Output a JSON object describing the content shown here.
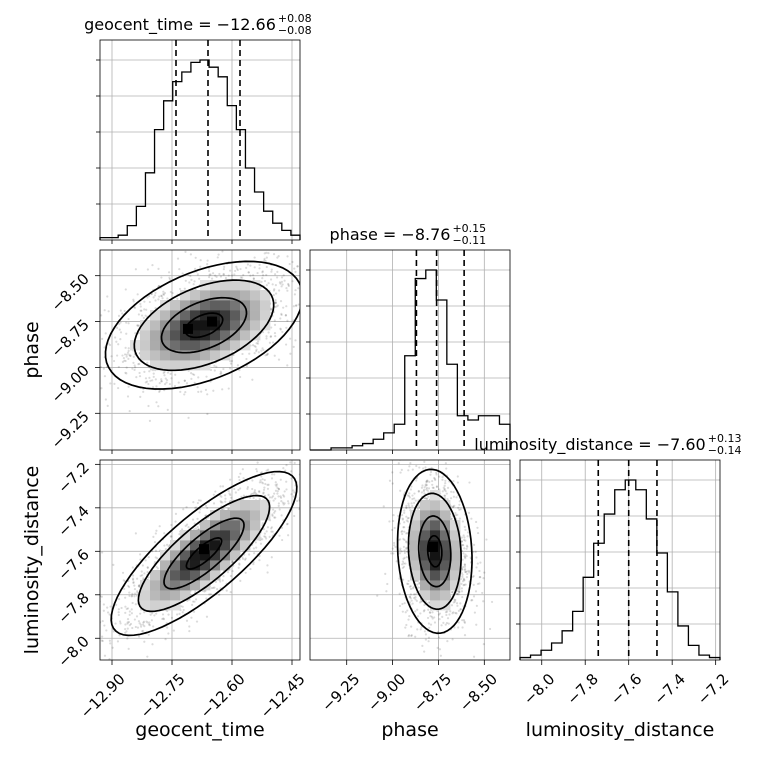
{
  "chart_data": {
    "type": "corner",
    "grid": true,
    "parameters": [
      {
        "name": "geocent_time",
        "label": "geocent_time",
        "range": [
          -12.93,
          -12.43
        ],
        "ticks": [
          -12.9,
          -12.75,
          -12.6,
          -12.45
        ],
        "tick_labels": [
          "−12.90",
          "−12.75",
          "−12.60",
          "−12.45"
        ],
        "median": -12.66,
        "lower_err": 0.08,
        "upper_err": 0.08,
        "title_main": "geocent_time = −12.66",
        "title_sup": "+0.08",
        "title_sub": "−0.08",
        "hist_counts": [
          1,
          1,
          2,
          6,
          14,
          28,
          46,
          58,
          66,
          70,
          74,
          75,
          72,
          68,
          56,
          46,
          30,
          20,
          12,
          7,
          4,
          2
        ]
      },
      {
        "name": "phase",
        "label": "phase",
        "range": [
          -9.45,
          -8.36
        ],
        "ticks": [
          -9.25,
          -9.0,
          -8.75,
          -8.5
        ],
        "tick_labels": [
          "−9.25",
          "−9.00",
          "−8.75",
          "−8.50"
        ],
        "median": -8.76,
        "lower_err": 0.11,
        "upper_err": 0.15,
        "title_main": "phase = −8.76",
        "title_sup": "+0.15",
        "title_sub": "−0.11",
        "hist_counts": [
          0,
          0,
          1,
          1,
          2,
          3,
          5,
          8,
          12,
          44,
          80,
          84,
          70,
          40,
          16,
          14,
          16,
          16,
          12
        ]
      },
      {
        "name": "luminosity_distance",
        "label": "luminosity_distance",
        "range": [
          -8.1,
          -7.18
        ],
        "ticks": [
          -8.0,
          -7.8,
          -7.6,
          -7.4,
          -7.2
        ],
        "tick_labels": [
          "−8.0",
          "−7.8",
          "−7.6",
          "−7.4",
          "−7.2"
        ],
        "median": -7.6,
        "lower_err": 0.14,
        "upper_err": 0.13,
        "title_main": "luminosity_distance = −7.60",
        "title_sup": "+0.13",
        "title_sub": "−0.14",
        "hist_counts": [
          1,
          2,
          4,
          7,
          12,
          20,
          34,
          48,
          60,
          70,
          74,
          70,
          58,
          44,
          28,
          14,
          6,
          2,
          1
        ]
      }
    ],
    "pairs": [
      {
        "x": "geocent_time",
        "y": "phase",
        "center": [
          -12.67,
          -8.77
        ],
        "sigma": [
          0.085,
          0.12
        ],
        "rho": 0.45,
        "peaks": [
          [
            -12.71,
            -8.79
          ],
          [
            -12.65,
            -8.75
          ]
        ]
      },
      {
        "x": "geocent_time",
        "y": "luminosity_distance",
        "center": [
          -12.67,
          -7.61
        ],
        "sigma": [
          0.08,
          0.13
        ],
        "rho": 0.8,
        "peaks": [
          [
            -12.67,
            -7.59
          ]
        ]
      },
      {
        "x": "phase",
        "y": "luminosity_distance",
        "center": [
          -8.77,
          -7.6
        ],
        "sigma": [
          0.07,
          0.13
        ],
        "rho": -0.1,
        "peaks": [
          [
            -8.78,
            -7.58
          ]
        ]
      }
    ]
  }
}
